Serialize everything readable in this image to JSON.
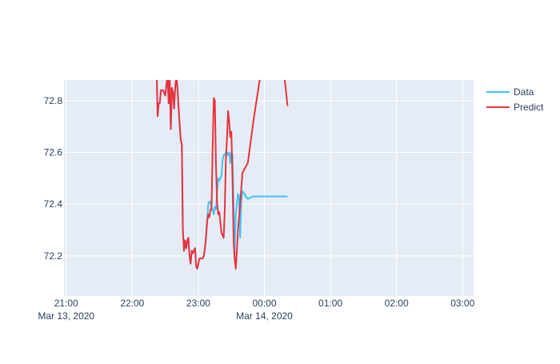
{
  "chart_data": {
    "type": "line",
    "title": "",
    "xlabel": "",
    "ylabel": "",
    "xlim": [
      "2020-03-13 20:58",
      "2020-03-14 03:10"
    ],
    "ylim": [
      72.045,
      72.88
    ],
    "yticks": [
      72.2,
      72.4,
      72.6,
      72.8
    ],
    "xticks": [
      {
        "t": "2020-03-13 21:00",
        "label": "21:00",
        "sublabel": "Mar 13, 2020"
      },
      {
        "t": "2020-03-13 22:00",
        "label": "22:00",
        "sublabel": ""
      },
      {
        "t": "2020-03-13 23:00",
        "label": "23:00",
        "sublabel": ""
      },
      {
        "t": "2020-03-14 00:00",
        "label": "00:00",
        "sublabel": "Mar 14, 2020"
      },
      {
        "t": "2020-03-14 01:00",
        "label": "01:00",
        "sublabel": ""
      },
      {
        "t": "2020-03-14 02:00",
        "label": "02:00",
        "sublabel": ""
      },
      {
        "t": "2020-03-14 03:00",
        "label": "03:00",
        "sublabel": ""
      }
    ],
    "grid": true,
    "legend_position": "top-right",
    "series": [
      {
        "name": "Data",
        "color": "#3fc3f5",
        "points": [
          [
            "2020-03-13 22:22",
            72.95
          ],
          [
            "2020-03-13 22:23",
            72.74
          ],
          [
            "2020-03-13 22:24",
            72.79
          ],
          [
            "2020-03-13 22:25",
            72.79
          ],
          [
            "2020-03-13 22:26",
            72.84
          ],
          [
            "2020-03-13 22:28",
            72.84
          ],
          [
            "2020-03-13 22:30",
            72.82
          ],
          [
            "2020-03-13 22:32",
            72.9
          ],
          [
            "2020-03-13 22:33",
            72.79
          ],
          [
            "2020-03-13 22:34",
            72.9
          ],
          [
            "2020-03-13 22:35",
            72.69
          ],
          [
            "2020-03-13 22:36",
            72.85
          ],
          [
            "2020-03-13 22:37",
            72.83
          ],
          [
            "2020-03-13 22:38",
            72.77
          ],
          [
            "2020-03-13 22:39",
            72.85
          ],
          [
            "2020-03-13 22:40",
            72.9
          ],
          [
            "2020-03-13 22:41",
            72.85
          ],
          [
            "2020-03-13 22:42",
            72.78
          ],
          [
            "2020-03-13 22:43",
            72.71
          ],
          [
            "2020-03-13 22:44",
            72.65
          ],
          [
            "2020-03-13 22:45",
            72.63
          ],
          [
            "2020-03-13 22:46",
            72.3
          ],
          [
            "2020-03-13 22:47",
            72.22
          ],
          [
            "2020-03-13 22:48",
            72.26
          ],
          [
            "2020-03-13 22:49",
            72.23
          ],
          [
            "2020-03-13 22:50",
            72.26
          ],
          [
            "2020-03-13 22:51",
            72.27
          ],
          [
            "2020-03-13 22:52",
            72.2
          ],
          [
            "2020-03-13 22:53",
            72.17
          ],
          [
            "2020-03-13 22:54",
            72.22
          ],
          [
            "2020-03-13 22:55",
            72.21
          ],
          [
            "2020-03-13 22:56",
            72.22
          ],
          [
            "2020-03-13 22:57",
            72.23
          ],
          [
            "2020-03-13 22:58",
            72.16
          ],
          [
            "2020-03-13 22:59",
            72.15
          ],
          [
            "2020-03-13 23:00",
            72.17
          ],
          [
            "2020-03-13 23:01",
            72.19
          ],
          [
            "2020-03-13 23:02",
            72.19
          ],
          [
            "2020-03-13 23:03",
            72.19
          ],
          [
            "2020-03-13 23:04",
            72.19
          ],
          [
            "2020-03-13 23:05",
            72.2
          ],
          [
            "2020-03-13 23:06",
            72.23
          ],
          [
            "2020-03-13 23:07",
            72.27
          ],
          [
            "2020-03-13 23:08",
            72.34
          ],
          [
            "2020-03-13 23:09",
            72.4
          ],
          [
            "2020-03-13 23:10",
            72.41
          ],
          [
            "2020-03-13 23:11",
            72.41
          ],
          [
            "2020-03-13 23:12",
            72.38
          ],
          [
            "2020-03-13 23:13",
            72.38
          ],
          [
            "2020-03-13 23:14",
            72.36
          ],
          [
            "2020-03-13 23:15",
            72.39
          ],
          [
            "2020-03-13 23:16",
            72.38
          ],
          [
            "2020-03-13 23:17",
            72.44
          ],
          [
            "2020-03-13 23:18",
            72.5
          ],
          [
            "2020-03-13 23:19",
            72.49
          ],
          [
            "2020-03-13 23:20",
            72.5
          ],
          [
            "2020-03-13 23:21",
            72.51
          ],
          [
            "2020-03-13 23:22",
            72.57
          ],
          [
            "2020-03-13 23:23",
            72.59
          ],
          [
            "2020-03-13 23:24",
            72.59
          ],
          [
            "2020-03-13 23:25",
            72.6
          ],
          [
            "2020-03-13 23:26",
            72.6
          ],
          [
            "2020-03-13 23:27",
            72.59
          ],
          [
            "2020-03-13 23:28",
            72.6
          ],
          [
            "2020-03-13 23:29",
            72.56
          ],
          [
            "2020-03-13 23:30",
            72.6
          ],
          [
            "2020-03-13 23:31",
            72.59
          ],
          [
            "2020-03-13 23:33",
            72.21
          ],
          [
            "2020-03-13 23:34",
            72.36
          ],
          [
            "2020-03-13 23:36",
            72.44
          ],
          [
            "2020-03-13 23:37",
            72.43
          ],
          [
            "2020-03-13 23:38",
            72.27
          ],
          [
            "2020-03-13 23:39",
            72.41
          ],
          [
            "2020-03-13 23:40",
            72.45
          ],
          [
            "2020-03-13 23:42",
            72.44
          ],
          [
            "2020-03-13 23:43",
            72.43
          ],
          [
            "2020-03-13 23:45",
            72.42
          ],
          [
            "2020-03-13 23:50",
            72.43
          ],
          [
            "2020-03-14 00:00",
            72.43
          ],
          [
            "2020-03-14 00:15",
            72.43
          ],
          [
            "2020-03-14 00:21",
            72.43
          ]
        ]
      },
      {
        "name": "Predict",
        "color": "#e8323c",
        "points": [
          [
            "2020-03-13 22:22",
            72.95
          ],
          [
            "2020-03-13 22:23",
            72.74
          ],
          [
            "2020-03-13 22:24",
            72.79
          ],
          [
            "2020-03-13 22:25",
            72.79
          ],
          [
            "2020-03-13 22:26",
            72.84
          ],
          [
            "2020-03-13 22:28",
            72.84
          ],
          [
            "2020-03-13 22:30",
            72.82
          ],
          [
            "2020-03-13 22:32",
            72.9
          ],
          [
            "2020-03-13 22:33",
            72.79
          ],
          [
            "2020-03-13 22:34",
            72.9
          ],
          [
            "2020-03-13 22:35",
            72.69
          ],
          [
            "2020-03-13 22:36",
            72.85
          ],
          [
            "2020-03-13 22:37",
            72.83
          ],
          [
            "2020-03-13 22:38",
            72.77
          ],
          [
            "2020-03-13 22:39",
            72.85
          ],
          [
            "2020-03-13 22:40",
            72.9
          ],
          [
            "2020-03-13 22:41",
            72.85
          ],
          [
            "2020-03-13 22:42",
            72.78
          ],
          [
            "2020-03-13 22:43",
            72.71
          ],
          [
            "2020-03-13 22:44",
            72.65
          ],
          [
            "2020-03-13 22:45",
            72.63
          ],
          [
            "2020-03-13 22:46",
            72.3
          ],
          [
            "2020-03-13 22:47",
            72.22
          ],
          [
            "2020-03-13 22:48",
            72.26
          ],
          [
            "2020-03-13 22:49",
            72.23
          ],
          [
            "2020-03-13 22:50",
            72.26
          ],
          [
            "2020-03-13 22:51",
            72.27
          ],
          [
            "2020-03-13 22:52",
            72.2
          ],
          [
            "2020-03-13 22:53",
            72.17
          ],
          [
            "2020-03-13 22:54",
            72.22
          ],
          [
            "2020-03-13 22:55",
            72.21
          ],
          [
            "2020-03-13 22:56",
            72.22
          ],
          [
            "2020-03-13 22:57",
            72.23
          ],
          [
            "2020-03-13 22:58",
            72.16
          ],
          [
            "2020-03-13 22:59",
            72.15
          ],
          [
            "2020-03-13 23:00",
            72.17
          ],
          [
            "2020-03-13 23:01",
            72.19
          ],
          [
            "2020-03-13 23:02",
            72.19
          ],
          [
            "2020-03-13 23:03",
            72.19
          ],
          [
            "2020-03-13 23:04",
            72.19
          ],
          [
            "2020-03-13 23:05",
            72.2
          ],
          [
            "2020-03-13 23:06",
            72.23
          ],
          [
            "2020-03-13 23:07",
            72.27
          ],
          [
            "2020-03-13 23:08",
            72.33
          ],
          [
            "2020-03-13 23:09",
            72.36
          ],
          [
            "2020-03-13 23:10",
            72.35
          ],
          [
            "2020-03-13 23:11",
            72.38
          ],
          [
            "2020-03-13 23:12",
            72.38
          ],
          [
            "2020-03-13 23:13",
            72.62
          ],
          [
            "2020-03-13 23:14",
            72.81
          ],
          [
            "2020-03-13 23:15",
            72.8
          ],
          [
            "2020-03-13 23:16",
            72.56
          ],
          [
            "2020-03-13 23:17",
            72.41
          ],
          [
            "2020-03-13 23:18",
            72.36
          ],
          [
            "2020-03-13 23:19",
            72.37
          ],
          [
            "2020-03-13 23:20",
            72.33
          ],
          [
            "2020-03-13 23:21",
            72.29
          ],
          [
            "2020-03-13 23:22",
            72.28
          ],
          [
            "2020-03-13 23:23",
            72.27
          ],
          [
            "2020-03-13 23:24",
            72.37
          ],
          [
            "2020-03-13 23:25",
            72.57
          ],
          [
            "2020-03-13 23:26",
            72.65
          ],
          [
            "2020-03-13 23:27",
            72.76
          ],
          [
            "2020-03-13 23:28",
            72.72
          ],
          [
            "2020-03-13 23:29",
            72.66
          ],
          [
            "2020-03-13 23:30",
            72.68
          ],
          [
            "2020-03-13 23:31",
            72.5
          ],
          [
            "2020-03-13 23:32",
            72.26
          ],
          [
            "2020-03-13 23:33",
            72.19
          ],
          [
            "2020-03-13 23:34",
            72.15
          ],
          [
            "2020-03-13 23:35",
            72.22
          ],
          [
            "2020-03-13 23:36",
            72.3
          ],
          [
            "2020-03-13 23:38",
            72.4
          ],
          [
            "2020-03-13 23:40",
            72.52
          ],
          [
            "2020-03-13 23:45",
            72.56
          ],
          [
            "2020-03-13 23:50",
            72.72
          ],
          [
            "2020-03-14 00:00",
            73.0
          ],
          [
            "2020-03-14 00:15",
            73.02
          ],
          [
            "2020-03-14 00:21",
            72.78
          ]
        ]
      }
    ]
  }
}
